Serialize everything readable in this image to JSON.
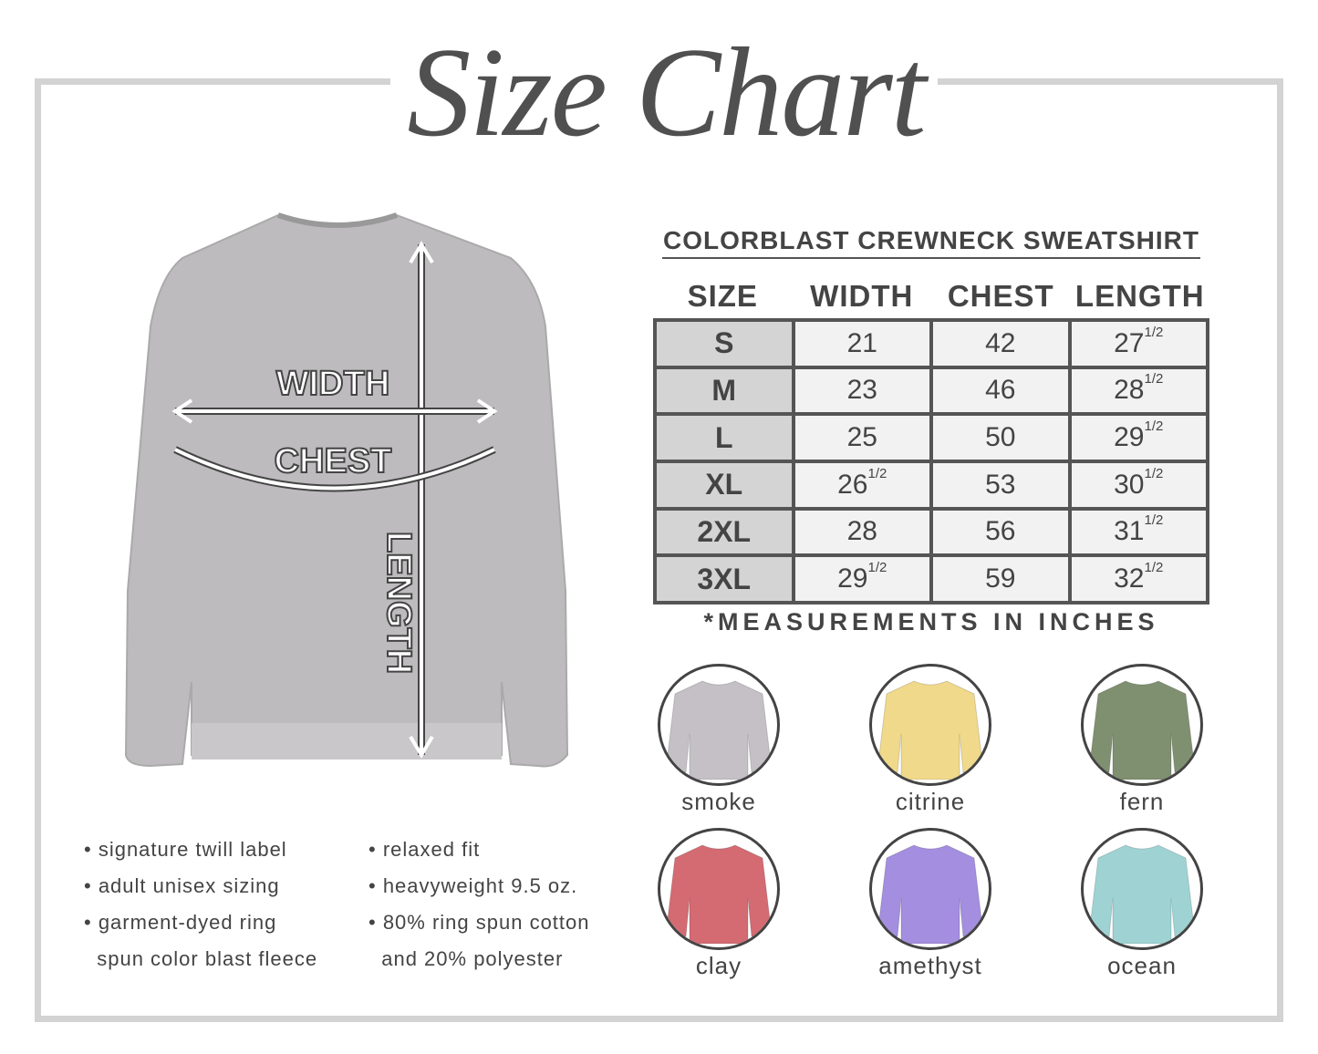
{
  "title": "Size Chart",
  "diagram_labels": {
    "width": "WIDTH",
    "chest": "CHEST",
    "length": "LENGTH"
  },
  "table": {
    "title": "COLORBLAST CREWNECK SWEATSHIRT",
    "headers": [
      "SIZE",
      "WIDTH",
      "CHEST",
      "LENGTH"
    ],
    "rows": [
      {
        "size": "S",
        "width": "21",
        "width_frac": "",
        "chest": "42",
        "length": "27",
        "length_frac": "1/2"
      },
      {
        "size": "M",
        "width": "23",
        "width_frac": "",
        "chest": "46",
        "length": "28",
        "length_frac": "1/2"
      },
      {
        "size": "L",
        "width": "25",
        "width_frac": "",
        "chest": "50",
        "length": "29",
        "length_frac": "1/2"
      },
      {
        "size": "XL",
        "width": "26",
        "width_frac": "1/2",
        "chest": "53",
        "length": "30",
        "length_frac": "1/2"
      },
      {
        "size": "2XL",
        "width": "28",
        "width_frac": "",
        "chest": "56",
        "length": "31",
        "length_frac": "1/2"
      },
      {
        "size": "3XL",
        "width": "29",
        "width_frac": "1/2",
        "chest": "59",
        "length": "32",
        "length_frac": "1/2"
      }
    ],
    "note": "*MEASUREMENTS IN INCHES"
  },
  "colors": [
    {
      "name": "smoke",
      "hex": "#c4c0c6"
    },
    {
      "name": "citrine",
      "hex": "#f0d98a"
    },
    {
      "name": "fern",
      "hex": "#7f9070"
    },
    {
      "name": "clay",
      "hex": "#d46b72"
    },
    {
      "name": "amethyst",
      "hex": "#a48ee0"
    },
    {
      "name": "ocean",
      "hex": "#9fd3d3"
    }
  ],
  "features": {
    "left": [
      "• signature twill label",
      "• adult unisex sizing",
      "• garment-dyed ring",
      "  spun color blast fleece"
    ],
    "right": [
      "• relaxed fit",
      "• heavyweight 9.5 oz.",
      "• 80% ring spun cotton",
      "  and 20% polyester"
    ]
  }
}
